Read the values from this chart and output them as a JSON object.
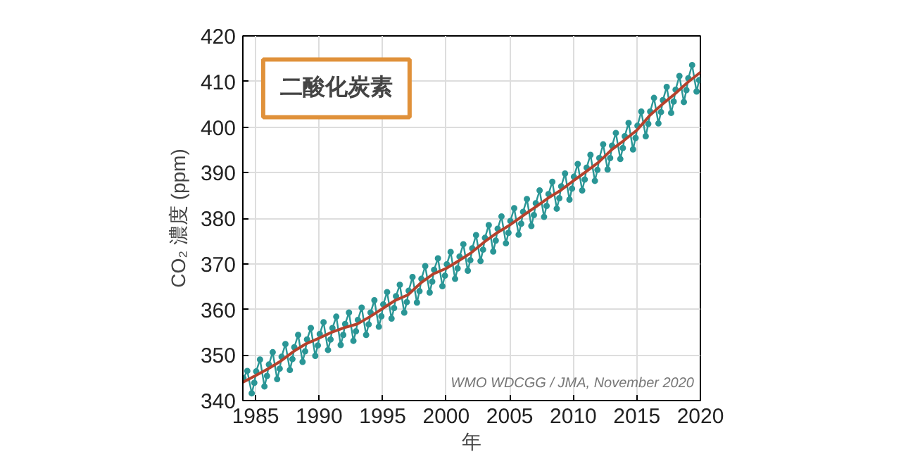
{
  "chart_data": {
    "type": "line",
    "title": "二酸化炭素",
    "xlabel": "年",
    "ylabel": "CO₂ 濃度 (ppm)",
    "x": [
      1984,
      1985,
      1986,
      1987,
      1988,
      1989,
      1990,
      1991,
      1992,
      1993,
      1994,
      1995,
      1996,
      1997,
      1998,
      1999,
      2000,
      2001,
      2002,
      2003,
      2004,
      2005,
      2006,
      2007,
      2008,
      2009,
      2010,
      2011,
      2012,
      2013,
      2014,
      2015,
      2016,
      2017,
      2018,
      2019,
      2020
    ],
    "series": [
      {
        "color": "#2a9696",
        "marker": "circle",
        "x": [
          1984.05,
          1984.35,
          1984.7,
          1984.9,
          1985.05,
          1985.35,
          1985.7,
          1985.9,
          1986.05,
          1986.35,
          1986.7,
          1986.9,
          1987.05,
          1987.35,
          1987.7,
          1987.9,
          1988.05,
          1988.35,
          1988.7,
          1988.9,
          1989.05,
          1989.35,
          1989.7,
          1989.9,
          1990.05,
          1990.35,
          1990.7,
          1990.9,
          1991.05,
          1991.35,
          1991.7,
          1991.9,
          1992.05,
          1992.35,
          1992.7,
          1992.9,
          1993.05,
          1993.35,
          1993.7,
          1993.9,
          1994.05,
          1994.35,
          1994.7,
          1994.9,
          1995.05,
          1995.35,
          1995.7,
          1995.9,
          1996.05,
          1996.35,
          1996.7,
          1996.9,
          1997.05,
          1997.35,
          1997.7,
          1997.9,
          1998.05,
          1998.35,
          1998.7,
          1998.9,
          1999.05,
          1999.35,
          1999.7,
          1999.9,
          2000.05,
          2000.35,
          2000.7,
          2000.9,
          2001.05,
          2001.35,
          2001.7,
          2001.9,
          2002.05,
          2002.35,
          2002.7,
          2002.9,
          2003.05,
          2003.35,
          2003.7,
          2003.9,
          2004.05,
          2004.35,
          2004.7,
          2004.9,
          2005.05,
          2005.35,
          2005.7,
          2005.9,
          2006.05,
          2006.35,
          2006.7,
          2006.9,
          2007.05,
          2007.35,
          2007.7,
          2007.9,
          2008.05,
          2008.35,
          2008.7,
          2008.9,
          2009.05,
          2009.35,
          2009.7,
          2009.9,
          2010.05,
          2010.35,
          2010.7,
          2010.9,
          2011.05,
          2011.35,
          2011.7,
          2011.9,
          2012.05,
          2012.35,
          2012.7,
          2012.9,
          2013.05,
          2013.35,
          2013.7,
          2013.9,
          2014.05,
          2014.35,
          2014.7,
          2014.9,
          2015.05,
          2015.35,
          2015.7,
          2015.9,
          2016.05,
          2016.35,
          2016.7,
          2016.9,
          2017.05,
          2017.35,
          2017.7,
          2017.9,
          2018.05,
          2018.35,
          2018.7,
          2018.9,
          2019.05,
          2019.35,
          2019.7,
          2019.9
        ],
        "values": [
          344.9,
          346.5,
          341.6,
          343.9,
          346.4,
          349.0,
          343.1,
          345.4,
          347.9,
          350.6,
          344.7,
          347.0,
          349.6,
          352.4,
          346.7,
          349.1,
          351.7,
          354.4,
          348.5,
          350.8,
          353.4,
          355.9,
          349.8,
          352.1,
          354.6,
          357.2,
          351.1,
          353.4,
          355.9,
          358.4,
          352.2,
          354.4,
          356.8,
          359.3,
          353.1,
          355.2,
          357.7,
          360.4,
          354.4,
          356.7,
          359.3,
          362.0,
          356.2,
          358.5,
          361.1,
          363.8,
          358.0,
          360.3,
          362.9,
          365.4,
          359.3,
          361.6,
          364.1,
          367.1,
          361.5,
          364.0,
          366.7,
          369.5,
          363.7,
          366.1,
          368.7,
          371.2,
          365.1,
          367.4,
          369.9,
          372.6,
          366.7,
          369.0,
          371.6,
          374.3,
          368.5,
          370.8,
          373.4,
          376.3,
          370.6,
          373.1,
          375.7,
          378.5,
          372.7,
          375.1,
          377.7,
          380.4,
          374.5,
          376.8,
          379.4,
          382.2,
          376.4,
          378.8,
          381.4,
          384.2,
          378.3,
          380.7,
          383.3,
          386.1,
          380.3,
          382.7,
          385.3,
          388.0,
          382.1,
          384.4,
          387.0,
          389.8,
          384.1,
          386.5,
          389.1,
          391.9,
          386.1,
          388.5,
          391.1,
          393.9,
          388.2,
          390.6,
          393.2,
          396.2,
          390.7,
          393.2,
          395.9,
          398.7,
          393.0,
          395.4,
          398.0,
          400.9,
          395.1,
          397.6,
          400.3,
          403.4,
          398.0,
          400.7,
          403.4,
          406.4,
          400.8,
          403.3,
          405.9,
          408.8,
          403.1,
          405.6,
          408.2,
          411.2,
          405.5,
          408.1,
          410.7,
          413.6,
          407.8,
          410.3
        ]
      },
      {
        "color": "#b5412c",
        "marker": "none",
        "values": [
          344.0,
          345.5,
          347.0,
          348.7,
          350.8,
          352.5,
          353.7,
          355.0,
          356.0,
          356.8,
          358.4,
          360.2,
          362.0,
          363.2,
          365.8,
          367.8,
          369.0,
          370.7,
          372.5,
          374.8,
          376.8,
          378.5,
          380.5,
          382.4,
          384.4,
          386.1,
          388.2,
          390.2,
          392.3,
          395.0,
          397.1,
          399.3,
          402.5,
          405.0,
          407.3,
          409.8,
          412.0
        ]
      }
    ],
    "xlim": [
      1984,
      2020
    ],
    "xticks": [
      1985,
      1990,
      1995,
      2000,
      2005,
      2010,
      2015,
      2020
    ],
    "ylim": [
      340,
      420
    ],
    "yticks": [
      340,
      350,
      360,
      370,
      380,
      390,
      400,
      410,
      420
    ],
    "grid": true,
    "annotations": [
      "WMO WDCGG / JMA, November 2020"
    ]
  }
}
